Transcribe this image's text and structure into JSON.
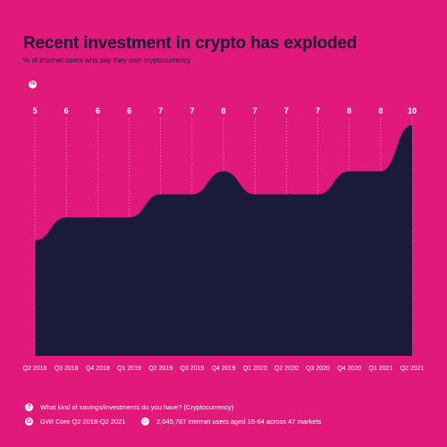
{
  "header": {
    "title": "Recent investment in crypto has exploded",
    "subtitle": "% of internet users who say they own cryptocurrency"
  },
  "icons": {
    "percent_icon": "%",
    "question_icon": "?",
    "source_icon": "G",
    "users_icon": "☺"
  },
  "footer": {
    "question": "What kind of savings/investments do you have? (Cryptocurrency)",
    "source": "GWI Core Q2 2018-Q2 2021",
    "sample": "2,045,787 internet users aged 16-64 across 47 markets"
  },
  "colors": {
    "background": "#e0197a",
    "area_fill": "#1a1a3a",
    "value_labels": "#ffffff",
    "gridlines": "#f5a0c8"
  },
  "chart_data": {
    "type": "area",
    "title": "Recent investment in crypto has exploded",
    "subtitle": "% of internet users who say they own cryptocurrency",
    "categories": [
      "Q2 2018",
      "Q3 2018",
      "Q4 2018",
      "Q1 2019",
      "Q2 2019",
      "Q3 2019",
      "Q4 2019",
      "Q1 2020",
      "Q2 2020",
      "Q3 2020",
      "Q4 2020",
      "Q1 2021",
      "Q2 2021"
    ],
    "values": [
      5,
      6,
      6,
      6,
      7,
      7,
      8,
      7,
      7,
      7,
      8,
      8,
      10
    ],
    "value_labels": [
      "5",
      "6",
      "6",
      "6",
      "7",
      "7",
      "8",
      "7",
      "7",
      "7",
      "8",
      "8",
      "10"
    ],
    "ylim": [
      0,
      10
    ],
    "grid": "vertical dotted",
    "xlabel": "",
    "ylabel": ""
  }
}
